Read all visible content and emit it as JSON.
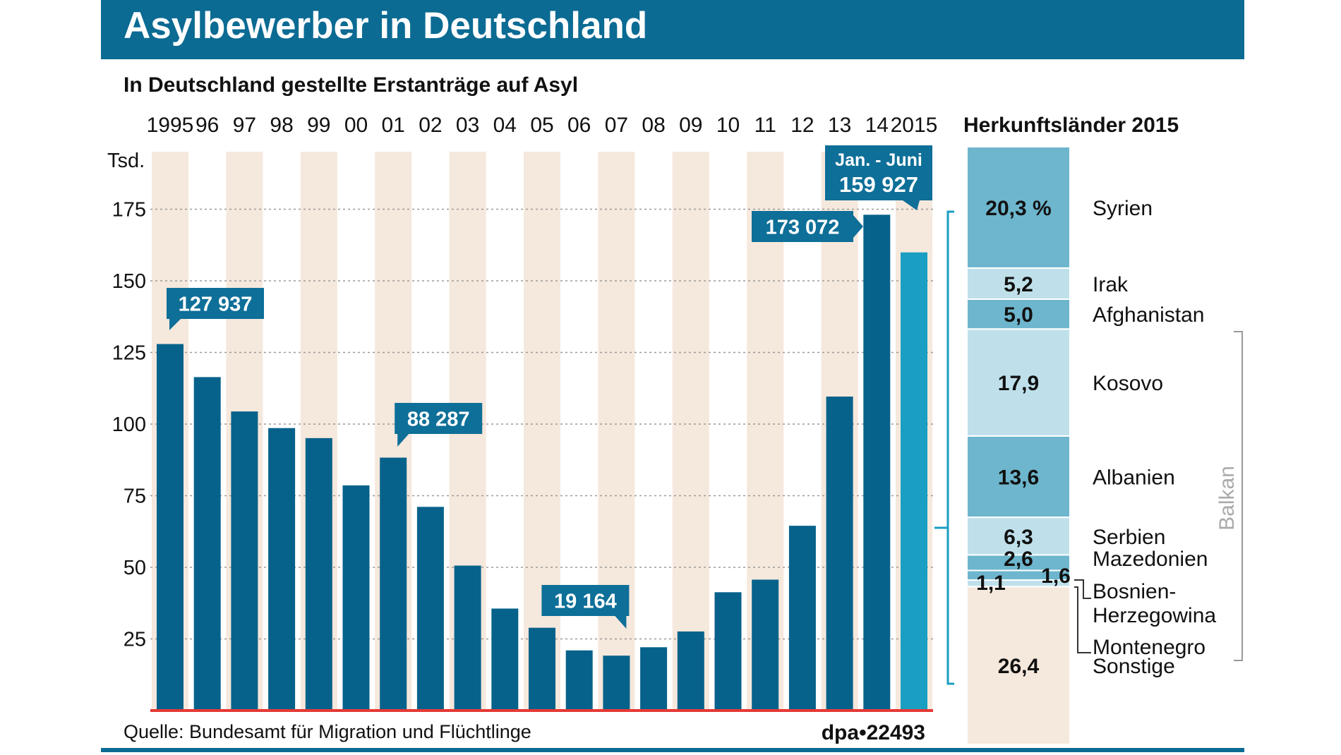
{
  "header": {
    "title": "Asylbewerber in Deutschland",
    "subtitle": "In Deutschland gestellte Erstanträge auf Asyl"
  },
  "colors": {
    "header_bg": "#0b6b93",
    "bar": "#07628b",
    "bar_highlight": "#1a9ec1",
    "stripe": "#f5e8dc",
    "callout": "#0e6f98",
    "baseline": "#e53935",
    "text": "#111111",
    "stack_dark": "#6db6cd",
    "stack_light": "#bfe0ea",
    "stack_other": "#f5e8dc",
    "bracket": "#1a9ec1",
    "balkan_bracket": "#999999"
  },
  "chart_data": {
    "type": "bar",
    "title": "In Deutschland gestellte Erstanträge auf Asyl",
    "ylabel": "Tsd.",
    "ylim": [
      0,
      175
    ],
    "yticks": [
      25,
      50,
      75,
      100,
      125,
      150,
      175
    ],
    "grid": true,
    "categories": [
      "1995",
      "96",
      "97",
      "98",
      "99",
      "00",
      "01",
      "02",
      "03",
      "04",
      "05",
      "06",
      "07",
      "08",
      "09",
      "10",
      "11",
      "12",
      "13",
      "14",
      "2015"
    ],
    "values": [
      127.937,
      116.4,
      104.4,
      98.6,
      95.1,
      78.6,
      88.287,
      71.1,
      50.6,
      35.6,
      28.9,
      21.0,
      19.164,
      22.1,
      27.6,
      41.3,
      45.7,
      64.5,
      109.6,
      173.072,
      159.927
    ],
    "highlight_index": 20,
    "annotations": [
      {
        "index": 0,
        "text": "127 937"
      },
      {
        "index": 6,
        "text": "88 287"
      },
      {
        "index": 12,
        "text": "19 164"
      },
      {
        "index": 19,
        "text": "173 072"
      },
      {
        "index": 20,
        "line1": "Jan. - Juni",
        "line2": "159 927"
      }
    ]
  },
  "origins": {
    "title": "Herkunftsländer 2015",
    "unit_note": "%",
    "group_label": "Balkan",
    "items": [
      {
        "value_label": "20,3 %",
        "label": "Syrien",
        "value": 20.3
      },
      {
        "value_label": "5,2",
        "label": "Irak",
        "value": 5.2
      },
      {
        "value_label": "5,0",
        "label": "Afghanistan",
        "value": 5.0
      },
      {
        "value_label": "17,9",
        "label": "Kosovo",
        "value": 17.9
      },
      {
        "value_label": "13,6",
        "label": "Albanien",
        "value": 13.6
      },
      {
        "value_label": "6,3",
        "label": "Serbien",
        "value": 6.3
      },
      {
        "value_label": "2,6",
        "label": "Mazedonien",
        "value": 2.6
      },
      {
        "value_label": "1,6",
        "label": "Bosnien-",
        "label2": "Herzegowina",
        "value": 1.6
      },
      {
        "value_label": "1,1",
        "label": "Montenegro",
        "value": 1.1
      },
      {
        "value_label": "26,4",
        "label": "Sonstige",
        "value": 26.4
      }
    ]
  },
  "footer": {
    "source": "Quelle: Bundesamt für Migration und Flüchtlinge",
    "credit": "dpa•22493"
  }
}
